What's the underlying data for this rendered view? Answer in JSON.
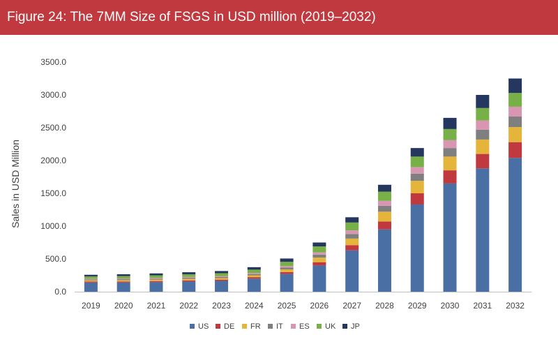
{
  "header": {
    "title": "Figure 24: The 7MM Size of FSGS in USD million (2019–2032)"
  },
  "chart_data": {
    "type": "bar",
    "stacked": true,
    "title": "Figure 24: The 7MM Size of FSGS in USD million (2019–2032)",
    "xlabel": "",
    "ylabel": "Sales in USD Million",
    "ylim": [
      0,
      3500
    ],
    "yticks": [
      "0.0",
      "500.0",
      "1000.0",
      "1500.0",
      "2000.0",
      "2500.0",
      "3000.0",
      "3500.0"
    ],
    "categories": [
      "2019",
      "2020",
      "2021",
      "2022",
      "2023",
      "2024",
      "2025",
      "2026",
      "2027",
      "2028",
      "2029",
      "2030",
      "2031",
      "2032"
    ],
    "legend_position": "bottom",
    "grid": false,
    "series": [
      {
        "name": "US",
        "color": "#4a6fa5",
        "values": [
          140,
          140,
          145,
          155,
          165,
          200,
          270,
          400,
          630,
          950,
          1330,
          1650,
          1880,
          2040
        ]
      },
      {
        "name": "DE",
        "color": "#c0393f",
        "values": [
          15,
          16,
          17,
          18,
          19,
          22,
          30,
          50,
          80,
          120,
          170,
          200,
          220,
          240
        ]
      },
      {
        "name": "FR",
        "color": "#e5b53b",
        "values": [
          20,
          21,
          22,
          23,
          24,
          28,
          40,
          70,
          100,
          150,
          190,
          210,
          220,
          230
        ]
      },
      {
        "name": "IT",
        "color": "#7f7f7f",
        "values": [
          13,
          14,
          15,
          16,
          17,
          20,
          28,
          45,
          70,
          90,
          110,
          130,
          150,
          160
        ]
      },
      {
        "name": "ES",
        "color": "#d896b3",
        "values": [
          10,
          11,
          12,
          13,
          14,
          16,
          23,
          35,
          55,
          75,
          100,
          120,
          140,
          150
        ]
      },
      {
        "name": "UK",
        "color": "#76b046",
        "values": [
          35,
          37,
          39,
          41,
          43,
          50,
          65,
          90,
          120,
          140,
          160,
          170,
          190,
          210
        ]
      },
      {
        "name": "JP",
        "color": "#25375e",
        "values": [
          25,
          27,
          29,
          31,
          33,
          38,
          50,
          60,
          80,
          105,
          130,
          170,
          200,
          220
        ]
      }
    ]
  }
}
